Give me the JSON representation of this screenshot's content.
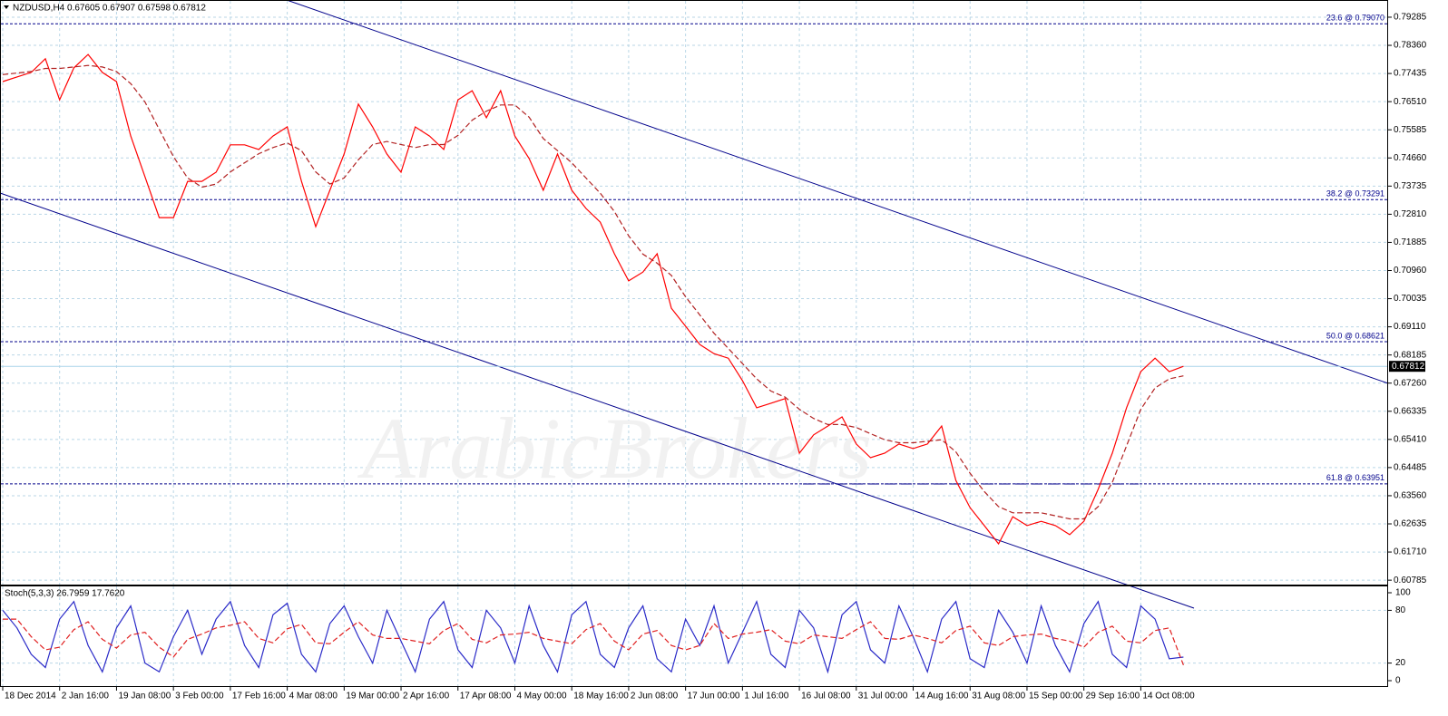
{
  "chart_data": [
    {
      "type": "line",
      "title": "NZDUSD,H4 0.67605 0.67907 0.67598 0.67812",
      "watermark": "ArabicBrokers",
      "categories": [
        "18 Dec 2014",
        null,
        null,
        null,
        "2 Jan 16:00",
        null,
        null,
        null,
        "19 Jan 08:00",
        null,
        null,
        null,
        "3 Feb 00:00",
        null,
        null,
        null,
        "17 Feb 16:00",
        null,
        null,
        null,
        "4 Mar 08:00",
        null,
        null,
        null,
        "19 Mar 00:00",
        null,
        null,
        null,
        "2 Apr 16:00",
        null,
        null,
        null,
        "17 Apr 08:00",
        null,
        null,
        null,
        "4 May 00:00",
        null,
        null,
        null,
        "18 May 16:00",
        null,
        null,
        null,
        "2 Jun 08:00",
        null,
        null,
        null,
        "17 Jun 00:00",
        null,
        null,
        null,
        "1 Jul 16:00",
        null,
        null,
        null,
        "16 Jul 08:00",
        null,
        null,
        null,
        "31 Jul 00:00",
        null,
        null,
        null,
        "14 Aug 16:00",
        null,
        null,
        null,
        "31 Aug 08:00",
        null,
        null,
        null,
        "15 Sep 00:00",
        null,
        null,
        null,
        "29 Sep 16:00",
        null,
        null,
        null,
        "14 Oct 08:00",
        null,
        null,
        null
      ],
      "series": [
        {
          "color": "#ff0000",
          "style": "solid",
          "values": [
            0.7717,
            0.7732,
            0.7747,
            0.7792,
            0.7657,
            0.7762,
            0.7806,
            0.7747,
            0.7717,
            0.7538,
            0.7404,
            0.727,
            0.727,
            0.7389,
            0.7389,
            0.7419,
            0.7509,
            0.7509,
            0.7494,
            0.7538,
            0.7568,
            0.7389,
            0.724,
            0.736,
            0.7479,
            0.7643,
            0.7568,
            0.7479,
            0.7419,
            0.7568,
            0.7538,
            0.7494,
            0.7657,
            0.7687,
            0.7598,
            0.7687,
            0.7538,
            0.7464,
            0.736,
            0.7479,
            0.736,
            0.73,
            0.7255,
            0.7151,
            0.7062,
            0.7091,
            0.7151,
            0.6972,
            0.6913,
            0.6853,
            0.6823,
            0.6808,
            0.6734,
            0.6645,
            0.666,
            0.6675,
            0.6496,
            0.6556,
            0.6585,
            0.6615,
            0.6526,
            0.6481,
            0.6496,
            0.6526,
            0.6511,
            0.6526,
            0.6585,
            0.6406,
            0.6317,
            0.6258,
            0.6198,
            0.6287,
            0.6258,
            0.6272,
            0.6258,
            0.6228,
            0.6272,
            0.6377,
            0.6496,
            0.6645,
            0.6764,
            0.6808,
            0.6764,
            0.67812
          ]
        },
        {
          "color": "#b22222",
          "style": "dashed",
          "values": [
            0.774,
            0.7745,
            0.775,
            0.776,
            0.776,
            0.7765,
            0.777,
            0.7765,
            0.775,
            0.771,
            0.765,
            0.756,
            0.747,
            0.74,
            0.737,
            0.738,
            0.742,
            0.745,
            0.748,
            0.75,
            0.7515,
            0.749,
            0.742,
            0.738,
            0.74,
            0.746,
            0.751,
            0.752,
            0.751,
            0.75,
            0.751,
            0.751,
            0.754,
            0.759,
            0.762,
            0.764,
            0.764,
            0.76,
            0.753,
            0.749,
            0.745,
            0.74,
            0.735,
            0.729,
            0.721,
            0.715,
            0.712,
            0.708,
            0.701,
            0.695,
            0.689,
            0.684,
            0.679,
            0.674,
            0.67,
            0.668,
            0.664,
            0.661,
            0.659,
            0.659,
            0.658,
            0.656,
            0.654,
            0.653,
            0.653,
            0.6535,
            0.654,
            0.65,
            0.643,
            0.637,
            0.632,
            0.63,
            0.63,
            0.63,
            0.629,
            0.628,
            0.628,
            0.632,
            0.64,
            0.652,
            0.664,
            0.671,
            0.674,
            0.675
          ]
        }
      ],
      "ylim": [
        0.6064,
        0.7985
      ],
      "yticks": [
        0.79285,
        {
          "value": 0.7836,
          "label": "0.78360"
        },
        0.77435,
        {
          "value": 0.7651,
          "label": "0.76510"
        },
        0.75585,
        {
          "value": 0.7466,
          "label": "0.74660"
        },
        0.73735,
        {
          "value": 0.7281,
          "label": "0.72810"
        },
        0.71885,
        {
          "value": 0.7096,
          "label": "0.70960"
        },
        0.70035,
        {
          "value": 0.6911,
          "label": "0.69110"
        },
        0.68185,
        {
          "value": 0.6726,
          "label": "0.67260"
        },
        0.66335,
        {
          "value": 0.6541,
          "label": "0.65410"
        },
        0.64485,
        {
          "value": 0.6356,
          "label": "0.63560"
        },
        0.62635,
        {
          "value": 0.6171,
          "label": "0.61710"
        },
        0.60785
      ],
      "levels": [
        {
          "value": 0.7907,
          "label": "23.6 @ 0.79070"
        },
        {
          "value": 0.73291,
          "label": "38.2 @ 0.73291"
        },
        {
          "value": 0.68621,
          "label": "50.0 @ 0.68621"
        },
        {
          "value": 0.63951,
          "label": "61.8 @ 0.63951"
        }
      ],
      "level_color": "#00008b",
      "last_price": 0.67812,
      "grid": true
    },
    {
      "type": "line",
      "title": "Stoch(5,3,3) 26.7959 17.7620",
      "series": [
        {
          "color": "#2b2bc8",
          "style": "solid",
          "values": [
            80,
            60,
            30,
            15,
            70,
            90,
            40,
            10,
            60,
            85,
            20,
            10,
            50,
            80,
            30,
            70,
            90,
            40,
            15,
            75,
            88,
            30,
            10,
            65,
            85,
            50,
            20,
            80,
            45,
            10,
            70,
            90,
            35,
            15,
            80,
            60,
            20,
            85,
            40,
            10,
            75,
            90,
            30,
            15,
            60,
            85,
            25,
            10,
            70,
            40,
            85,
            20,
            55,
            90,
            30,
            15,
            80,
            60,
            10,
            75,
            90,
            35,
            20,
            85,
            50,
            10,
            70,
            90,
            25,
            15,
            80,
            55,
            20,
            85,
            40,
            10,
            65,
            90,
            30,
            15,
            85,
            70,
            25,
            26.7959
          ]
        },
        {
          "color": "#e02020",
          "style": "dashed",
          "values": [
            70,
            70,
            50,
            35,
            38,
            58,
            67,
            47,
            37,
            52,
            55,
            38,
            27,
            47,
            53,
            60,
            63,
            67,
            48,
            43,
            59,
            64,
            43,
            42,
            55,
            67,
            52,
            48,
            48,
            45,
            42,
            57,
            65,
            47,
            43,
            52,
            53,
            55,
            48,
            45,
            42,
            58,
            65,
            45,
            35,
            53,
            57,
            40,
            35,
            40,
            65,
            48,
            53,
            55,
            58,
            45,
            42,
            52,
            50,
            48,
            58,
            67,
            48,
            47,
            52,
            48,
            43,
            57,
            62,
            43,
            40,
            50,
            52,
            53,
            48,
            45,
            38,
            55,
            62,
            45,
            43,
            57,
            60,
            17.762
          ]
        }
      ],
      "ylim": [
        0,
        100
      ],
      "yticks": [
        0,
        20,
        80,
        100
      ],
      "grid": true
    }
  ]
}
